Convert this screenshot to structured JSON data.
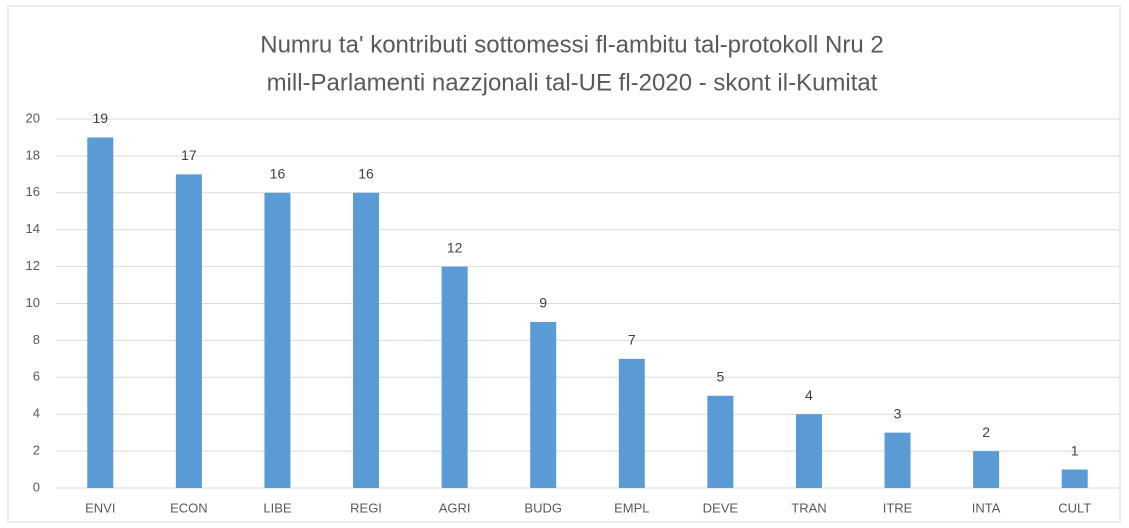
{
  "chart_data": {
    "type": "bar",
    "title": [
      "Numru ta' kontributi sottomessi fl-ambitu tal-protokoll Nru 2",
      "mill-Parlamenti nazzjonali tal-UE fl-2020 - skont il-Kumitat"
    ],
    "categories": [
      "ENVI",
      "ECON",
      "LIBE",
      "REGI",
      "AGRI",
      "BUDG",
      "EMPL",
      "DEVE",
      "TRAN",
      "ITRE",
      "INTA",
      "CULT"
    ],
    "values": [
      19,
      17,
      16,
      16,
      12,
      9,
      7,
      5,
      4,
      3,
      2,
      1
    ],
    "color": "#5b9bd5",
    "ylim": [
      0,
      20
    ],
    "yticks": [
      0,
      2,
      4,
      6,
      8,
      10,
      12,
      14,
      16,
      18,
      20
    ],
    "grid": true
  }
}
